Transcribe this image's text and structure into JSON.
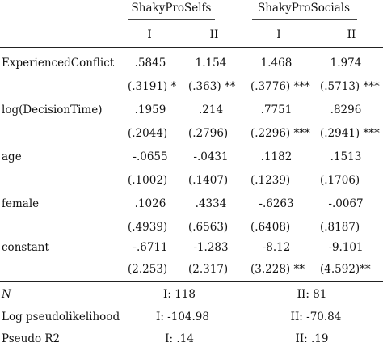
{
  "header": {
    "groups": [
      "ShakyProSelfs",
      "ShakyProSocials"
    ],
    "columns": [
      "I",
      "II",
      "I",
      "II"
    ]
  },
  "rows": [
    {
      "label": "ExperiencedConflict",
      "coef": [
        ".5845",
        "1.154",
        "1.468",
        "1.974"
      ],
      "se": [
        "(.3191) *",
        "(.363) **",
        "(.3776) ***",
        "(.5713) ***"
      ]
    },
    {
      "label": "log(DecisionTime)",
      "coef": [
        ".1959",
        ".214",
        ".7751",
        ".8296"
      ],
      "se": [
        "(.2044)",
        "(.2796)",
        "(.2296) ***",
        "(.2941) ***"
      ]
    },
    {
      "label": "age",
      "coef": [
        "-.0655",
        "-.0431",
        ".1182",
        ".1513"
      ],
      "se": [
        "(.1002)",
        "(.1407)",
        "(.1239)",
        "(.1706)"
      ]
    },
    {
      "label": "female",
      "coef": [
        ".1026",
        ".4334",
        "-.6263",
        "-.0067"
      ],
      "se": [
        "(.4939)",
        "(.6563)",
        "(.6408)",
        "(.8187)"
      ]
    },
    {
      "label": "constant",
      "coef": [
        "-.6711",
        "-1.283",
        "-8.12",
        "-9.101"
      ],
      "se": [
        "(2.253)",
        "(2.317)",
        "(3.228) **",
        "(4.592)**"
      ]
    }
  ],
  "stats": [
    {
      "label": "N",
      "values": [
        "I: 118",
        "II: 81"
      ]
    },
    {
      "label": "Log pseudolikelihood",
      "values": [
        "I: -104.98",
        "II: -70.84"
      ]
    },
    {
      "label": "Pseudo R2",
      "values": [
        "I: .14",
        "II: .19"
      ]
    }
  ]
}
